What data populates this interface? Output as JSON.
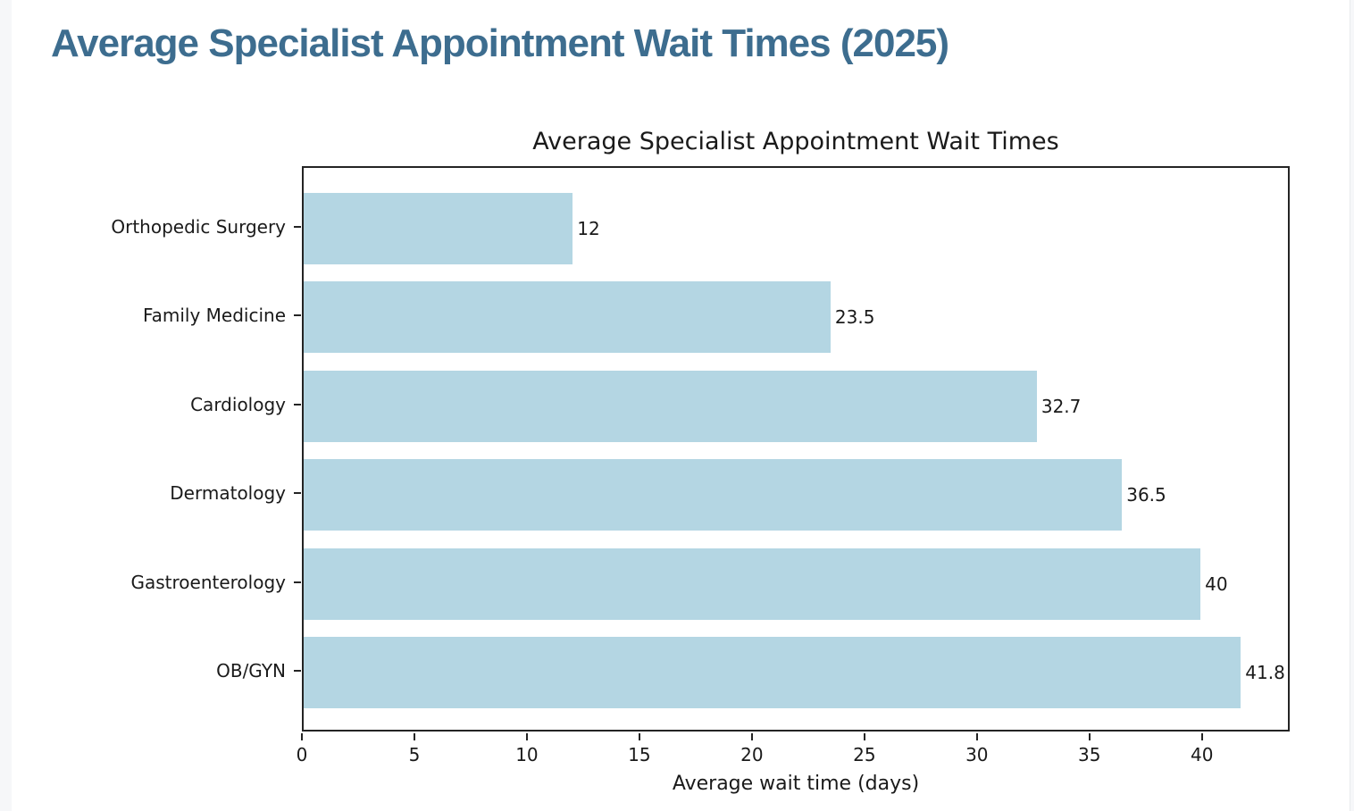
{
  "page": {
    "heading": "Average Specialist Appointment Wait Times (2025)"
  },
  "chart_data": {
    "type": "bar",
    "orientation": "horizontal",
    "title": "Average Specialist Appointment Wait Times",
    "xlabel": "Average wait time (days)",
    "ylabel": "",
    "categories": [
      "Orthopedic Surgery",
      "Family Medicine",
      "Cardiology",
      "Dermatology",
      "Gastroenterology",
      "OB/GYN"
    ],
    "values": [
      12,
      23.5,
      32.7,
      36.5,
      40,
      41.8
    ],
    "value_labels": [
      "12",
      "23.5",
      "32.7",
      "36.5",
      "40",
      "41.8"
    ],
    "xticks": [
      0,
      5,
      10,
      15,
      20,
      25,
      30,
      35,
      40
    ],
    "xtick_labels": [
      "0",
      "5",
      "10",
      "15",
      "20",
      "25",
      "30",
      "35",
      "40"
    ],
    "xlim": [
      0,
      43.9
    ],
    "grid": false,
    "legend": null,
    "bar_color": "#b4d6e3",
    "axis_color": "#242424",
    "text_color": "#1a1a1a"
  },
  "style": {
    "heading_color": "#3d6d8f",
    "background_color": "#ffffff",
    "gutter_color": "#f6f7f9"
  }
}
